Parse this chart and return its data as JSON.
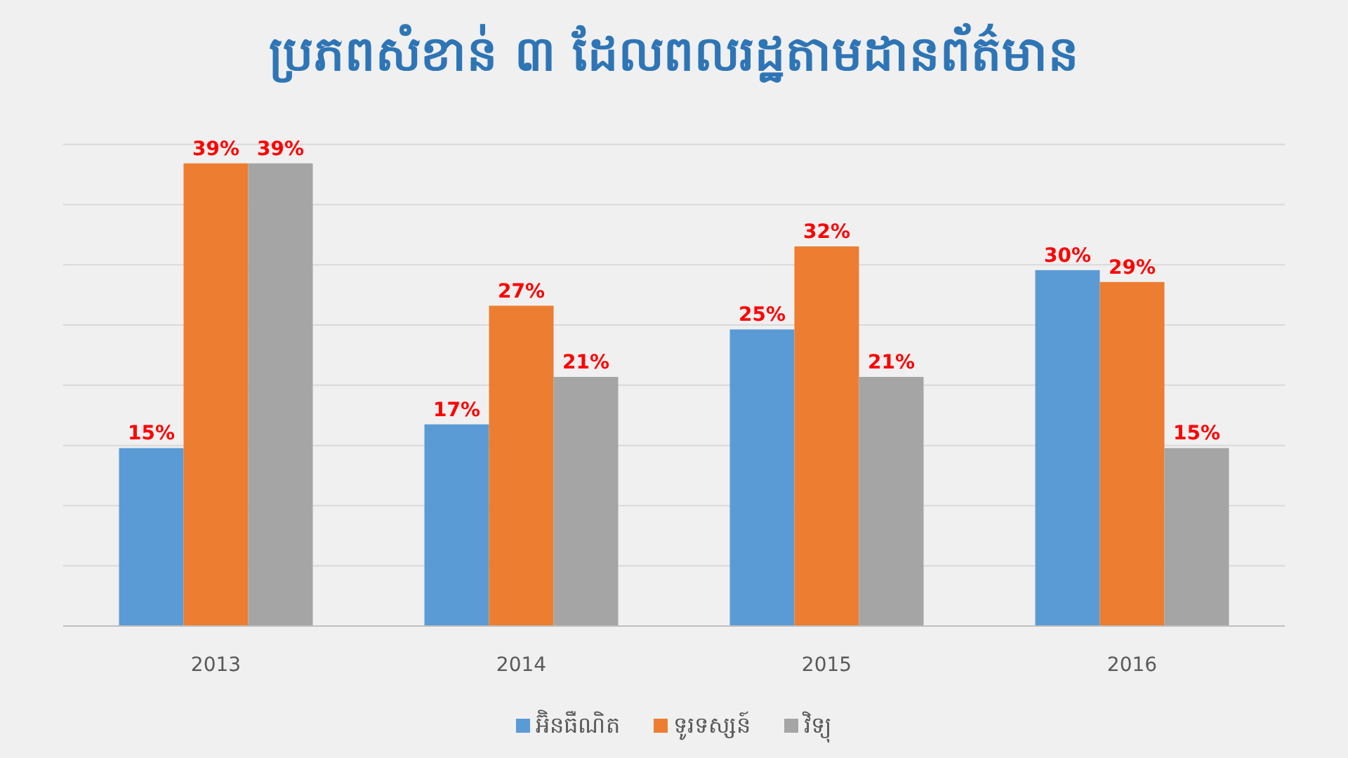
{
  "chart_data": {
    "type": "bar",
    "title": "ប្រភពសំខាន់ ៣ ដែលពលរដ្ឋតាមដានព័ត៌មាន",
    "categories": [
      "2013",
      "2014",
      "2015",
      "2016"
    ],
    "series": [
      {
        "name": "អ៊ិនធឺណិត",
        "color": "#5b9bd5",
        "values": [
          15,
          17,
          25,
          30
        ],
        "value_labels": [
          "15%",
          "17%",
          "25%",
          "30%"
        ]
      },
      {
        "name": "ទូរទស្សន៍",
        "color": "#ed7d31",
        "values": [
          39,
          27,
          32,
          29
        ],
        "value_labels": [
          "39%",
          "27%",
          "32%",
          "29%"
        ]
      },
      {
        "name": "វិទ្យុ",
        "color": "#a5a5a5",
        "values": [
          39,
          21,
          21,
          15
        ],
        "value_labels": [
          "39%",
          "21%",
          "21%",
          "15%"
        ]
      }
    ],
    "tick_labels": "x",
    "grid": "y",
    "legend": "bottom"
  }
}
